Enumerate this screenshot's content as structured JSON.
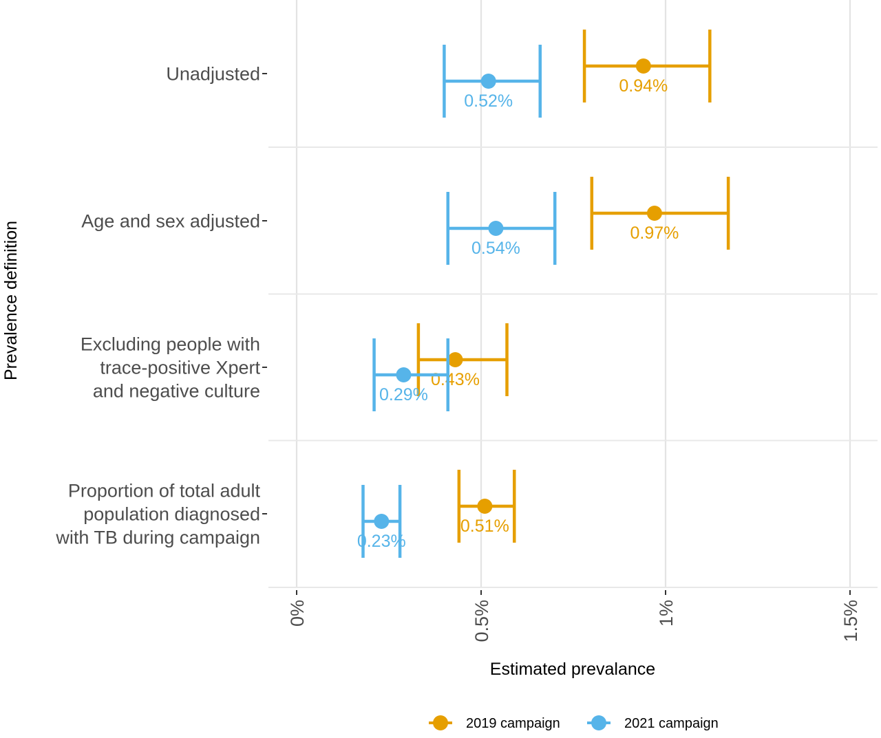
{
  "chart_data": {
    "type": "forest",
    "xlabel": "Estimated prevalance",
    "ylabel": "Prevalence definition",
    "xlim": [
      0,
      1.5
    ],
    "x_ticks": [
      {
        "value": 0,
        "label": "0%"
      },
      {
        "value": 0.5,
        "label": "0.5%"
      },
      {
        "value": 1,
        "label": "1%"
      },
      {
        "value": 1.5,
        "label": "1.5%"
      }
    ],
    "categories": [
      "Unadjusted",
      "Age and sex adjusted",
      "Excluding people with\ntrace-positive Xpert\nand negative culture",
      "Proportion of total adult\npopulation diagnosed\nwith TB during campaign"
    ],
    "series": [
      {
        "name": "2019 campaign",
        "color": "#E69F00",
        "estimates": [
          0.94,
          0.97,
          0.43,
          0.51
        ],
        "lower": [
          0.78,
          0.8,
          0.33,
          0.44
        ],
        "upper": [
          1.12,
          1.17,
          0.57,
          0.59
        ],
        "labels": [
          "0.94%",
          "0.97%",
          "0.43%",
          "0.51%"
        ]
      },
      {
        "name": "2021 campaign",
        "color": "#56B4E9",
        "estimates": [
          0.52,
          0.54,
          0.29,
          0.23
        ],
        "lower": [
          0.4,
          0.41,
          0.21,
          0.18
        ],
        "upper": [
          0.66,
          0.7,
          0.41,
          0.28
        ],
        "labels": [
          "0.52%",
          "0.54%",
          "0.29%",
          "0.23%"
        ]
      }
    ],
    "grid": true,
    "legend": {
      "position": "bottom",
      "items": [
        "2019 campaign",
        "2021 campaign"
      ]
    }
  }
}
